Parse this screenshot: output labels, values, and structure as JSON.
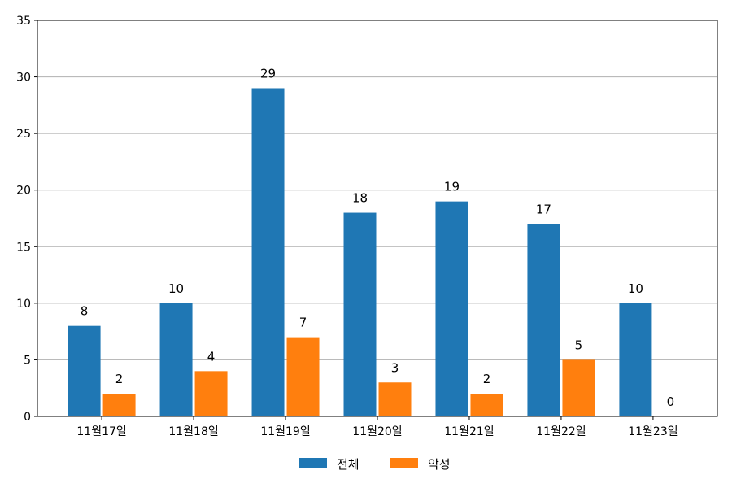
{
  "chart_data": {
    "type": "bar",
    "categories": [
      "11월17일",
      "11월18일",
      "11월19일",
      "11월20일",
      "11월21일",
      "11월22일",
      "11월23일"
    ],
    "series": [
      {
        "name": "전체",
        "values": [
          8,
          10,
          29,
          18,
          19,
          17,
          10
        ],
        "color": "#1f77b4"
      },
      {
        "name": "악성",
        "values": [
          2,
          4,
          7,
          3,
          2,
          5,
          0
        ],
        "color": "#ff7f0e"
      }
    ],
    "ylim": [
      0,
      35
    ],
    "yticks": [
      0,
      5,
      10,
      15,
      20,
      25,
      30,
      35
    ],
    "grid": "horizontal",
    "legend": "bottom-center",
    "data_labels": true
  }
}
